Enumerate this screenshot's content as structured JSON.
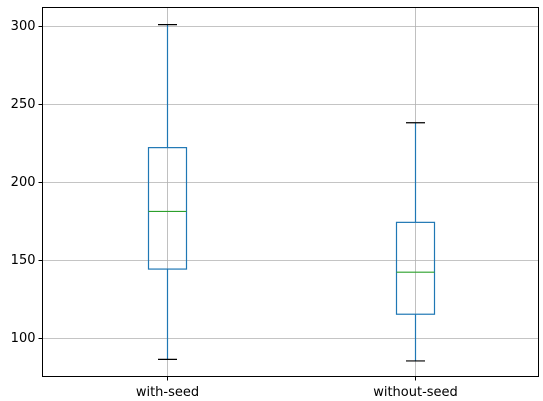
{
  "chart_data": {
    "type": "box",
    "title": "",
    "xlabel": "",
    "ylabel": "",
    "categories": [
      "with-seed",
      "without-seed"
    ],
    "boxes": [
      {
        "name": "with-seed",
        "whisker_low": 86,
        "q1": 144,
        "median": 181,
        "q3": 222,
        "whisker_high": 301
      },
      {
        "name": "without-seed",
        "whisker_low": 85,
        "q1": 115,
        "median": 142,
        "q3": 174,
        "whisker_high": 238
      }
    ],
    "ylim": [
      75,
      312
    ],
    "yticks": [
      100,
      150,
      200,
      250,
      300
    ],
    "grid": true,
    "colors": {
      "box": "#1f77b4",
      "median": "#2ca02c",
      "caps": "#000000",
      "grid": "#b0b0b0"
    }
  }
}
